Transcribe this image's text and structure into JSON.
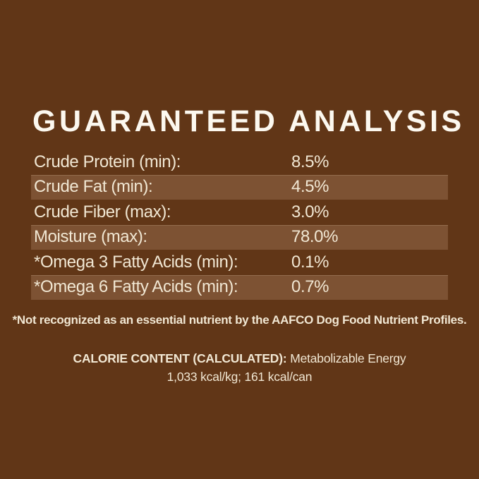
{
  "colors": {
    "bg": "#613617",
    "stripe": "#7d5233",
    "text": "#f1e7d3",
    "title_text": "#fcf8ef"
  },
  "title": "GUARANTEED ANALYSIS",
  "analysis_rows": [
    {
      "label": "Crude Protein (min):",
      "value": "8.5%"
    },
    {
      "label": "Crude Fat (min):",
      "value": "4.5%"
    },
    {
      "label": "Crude Fiber (max):",
      "value": "3.0%"
    },
    {
      "label": "Moisture (max):",
      "value": "78.0%"
    },
    {
      "label": "*Omega 3 Fatty Acids (min):",
      "value": "0.1%"
    },
    {
      "label": "*Omega 6 Fatty Acids (min):",
      "value": "0.7%"
    }
  ],
  "footnote": "*Not recognized as an essential nutrient by the AAFCO Dog Food Nutrient Profiles.",
  "calorie": {
    "heading": "CALORIE CONTENT (CALCULATED):",
    "description": "Metabolizable Energy",
    "values": "1,033 kcal/kg; 161 kcal/can"
  }
}
